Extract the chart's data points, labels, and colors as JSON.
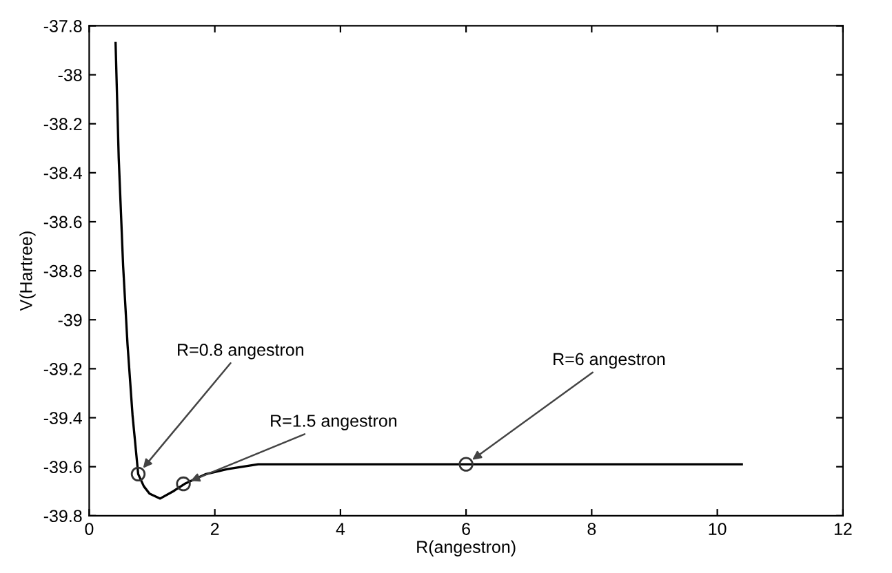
{
  "chart_data": {
    "type": "line",
    "xlabel": "R(angestron)",
    "ylabel": "V(Hartree)",
    "xlim": [
      0,
      12
    ],
    "ylim": [
      -39.8,
      -37.8
    ],
    "xticks": [
      0,
      2,
      4,
      6,
      8,
      10,
      12
    ],
    "yticks": [
      -39.8,
      -39.6,
      -39.4,
      -39.2,
      -39,
      -38.8,
      -38.6,
      -38.4,
      -38.2,
      -38,
      -37.8
    ],
    "grid": false,
    "legend": false,
    "series": [
      {
        "color": "#000000",
        "marker": "none",
        "x": [
          0.42,
          0.47,
          0.54,
          0.61,
          0.69,
          0.78,
          0.87,
          0.96,
          1.13,
          1.34,
          1.52,
          1.86,
          2.2,
          2.69,
          4,
          6,
          8,
          10.39
        ],
        "values": [
          -37.87,
          -38.34,
          -38.78,
          -39.1,
          -39.39,
          -39.63,
          -39.68,
          -39.71,
          -39.73,
          -39.7,
          -39.67,
          -39.63,
          -39.61,
          -39.59,
          -39.59,
          -39.59,
          -39.59,
          -39.59
        ]
      },
      {
        "type": "scatter",
        "color": "#333333",
        "marker": "circle",
        "x": [
          0.78,
          1.5,
          6
        ],
        "values": [
          -39.63,
          -39.67,
          -39.59
        ]
      }
    ],
    "annotations": [
      {
        "text": "R=0.8 angestron",
        "x": 0.78,
        "y": -39.63
      },
      {
        "text": "R=1.5 angestron",
        "x": 1.5,
        "y": -39.67
      },
      {
        "text": "R=6 angestron",
        "x": 6,
        "y": -39.59
      }
    ]
  }
}
